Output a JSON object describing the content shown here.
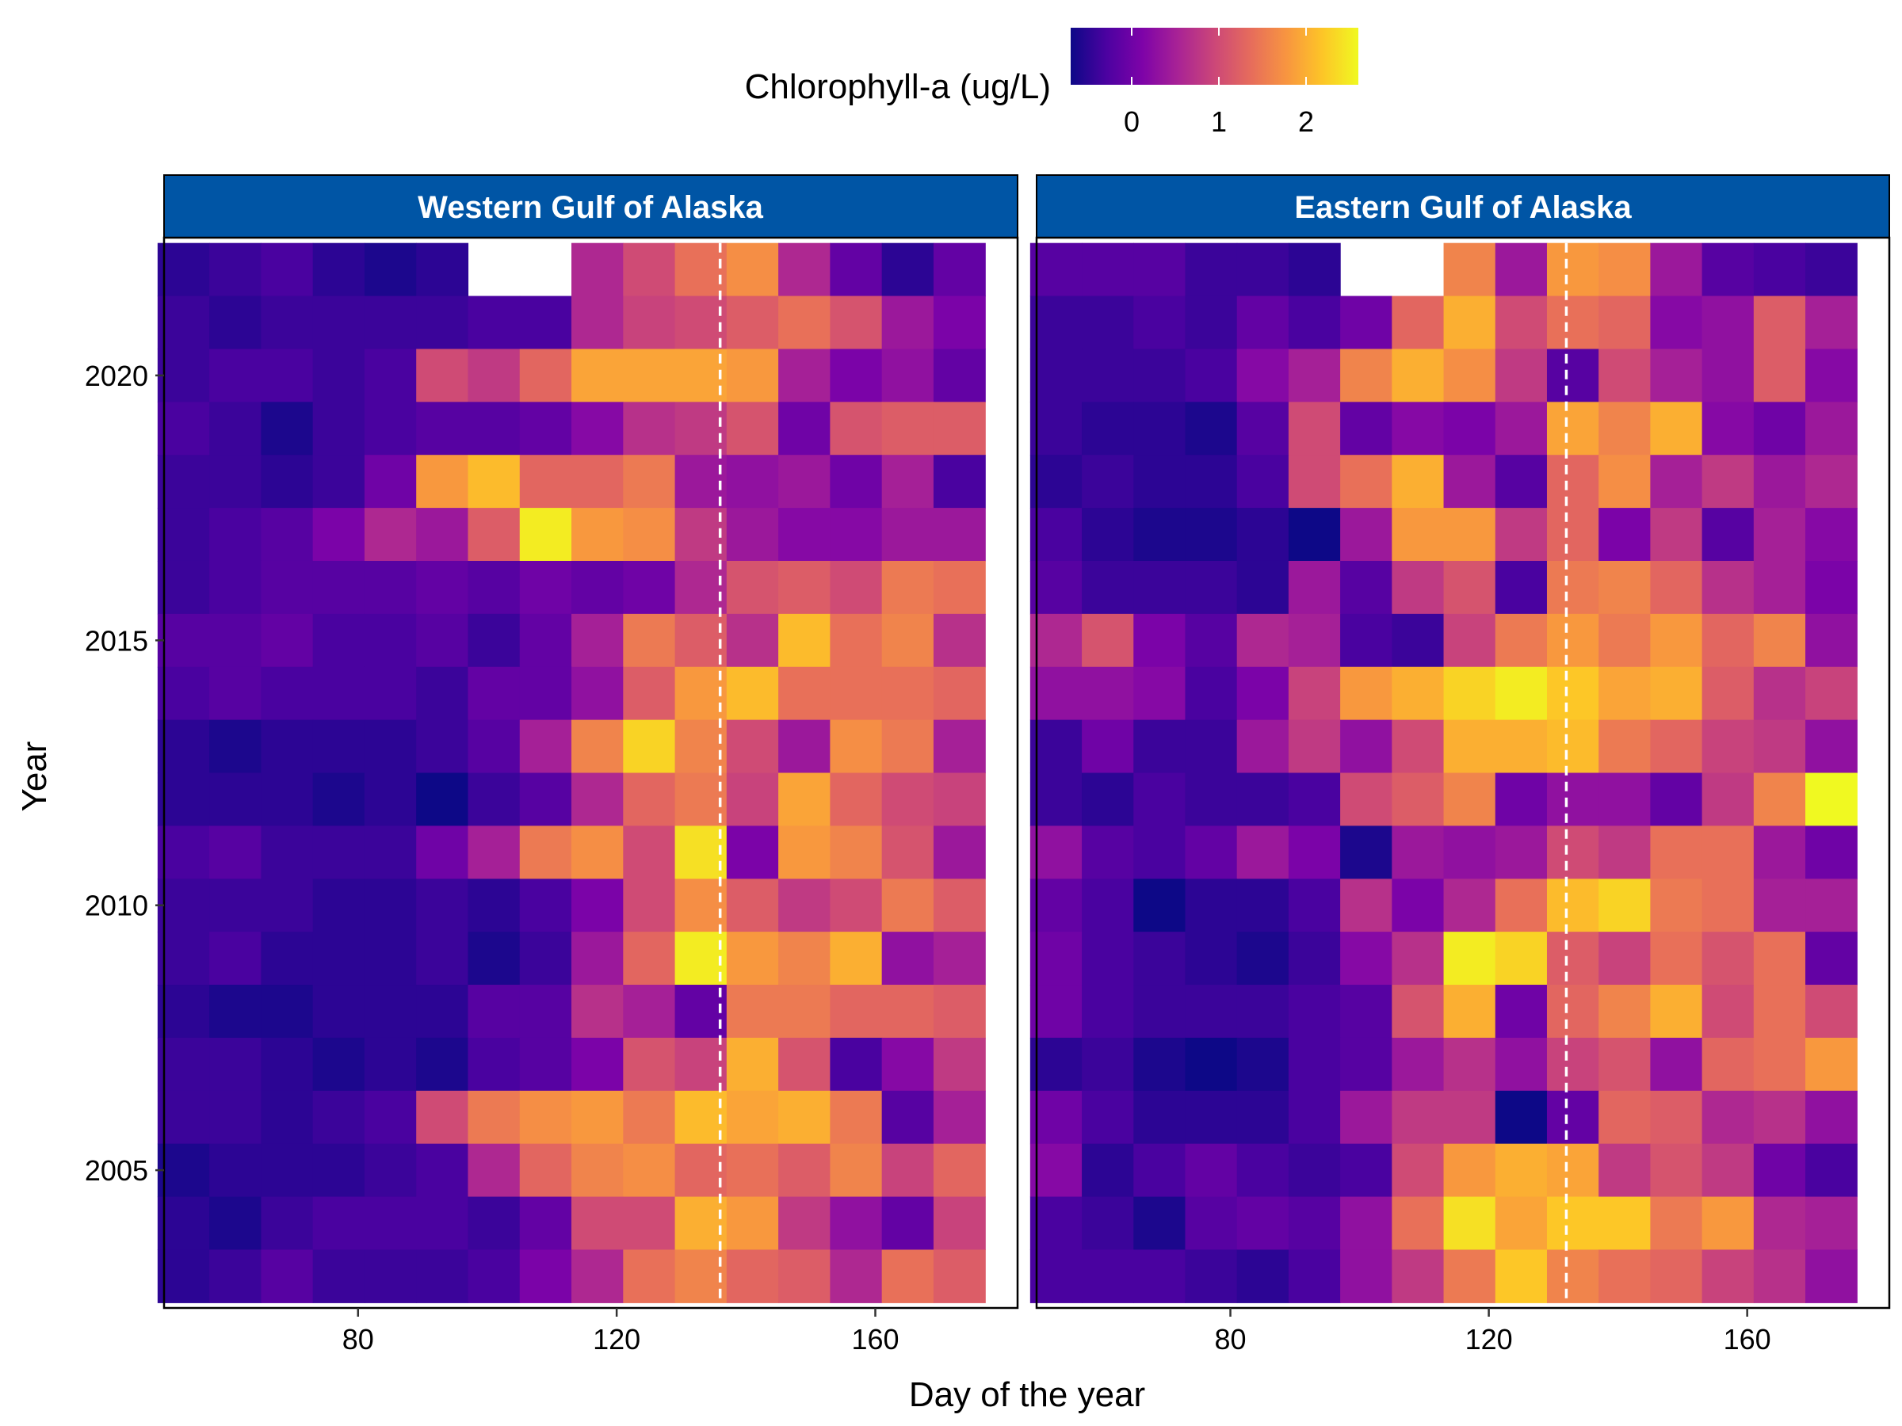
{
  "chart_data": {
    "type": "heatmap",
    "legend": {
      "title": "Chlorophyll-a (ug/L)",
      "position": "top",
      "colormap": "plasma",
      "range": [
        -0.7,
        2.6
      ],
      "ticks": [
        0,
        1,
        2
      ]
    },
    "xlabel": "Day of the year",
    "ylabel": "Year",
    "x_ticks": [
      80,
      120,
      160
    ],
    "y_ticks": [
      2005,
      2010,
      2015,
      2020
    ],
    "xlim": [
      50,
      182
    ],
    "ylim": [
      2002.4,
      2022.6
    ],
    "bin_days": 8,
    "bin_start_days": [
      49,
      57,
      65,
      73,
      81,
      89,
      97,
      105,
      113,
      121,
      129,
      137,
      145,
      153,
      161,
      169
    ],
    "years": [
      2022,
      2021,
      2020,
      2019,
      2018,
      2017,
      2016,
      2015,
      2014,
      2013,
      2012,
      2011,
      2010,
      2009,
      2008,
      2007,
      2006,
      2005,
      2004,
      2003
    ],
    "panels": [
      {
        "name": "Western Gulf of Alaska",
        "reference_day": 136,
        "rows": [
          [
            -0.5,
            -0.4,
            -0.3,
            -0.5,
            -0.6,
            -0.5,
            null,
            null,
            0.6,
            1.0,
            1.4,
            1.7,
            0.6,
            -0.1,
            -0.5,
            -0.1
          ],
          [
            -0.4,
            -0.5,
            -0.4,
            -0.4,
            -0.4,
            -0.4,
            -0.3,
            -0.3,
            0.6,
            0.9,
            1.0,
            1.2,
            1.4,
            1.1,
            0.4,
            0.1
          ],
          [
            -0.4,
            -0.3,
            -0.3,
            -0.4,
            -0.3,
            1.0,
            0.8,
            1.3,
            1.9,
            1.9,
            1.9,
            1.8,
            0.5,
            0.1,
            0.3,
            -0.1
          ],
          [
            -0.3,
            -0.4,
            -0.6,
            -0.4,
            -0.3,
            -0.2,
            -0.2,
            -0.1,
            0.2,
            0.7,
            0.8,
            1.1,
            0.0,
            1.1,
            1.2,
            1.2
          ],
          [
            -0.4,
            -0.4,
            -0.5,
            -0.4,
            0.0,
            1.8,
            2.1,
            1.3,
            1.3,
            1.5,
            0.4,
            0.3,
            0.4,
            0.0,
            0.5,
            -0.3
          ],
          [
            -0.4,
            -0.3,
            -0.2,
            0.1,
            0.6,
            0.4,
            1.2,
            2.5,
            1.8,
            1.7,
            0.8,
            0.4,
            0.2,
            0.2,
            0.4,
            0.4
          ],
          [
            -0.4,
            -0.3,
            -0.2,
            -0.2,
            -0.2,
            -0.1,
            -0.2,
            0.0,
            -0.1,
            0.0,
            0.6,
            1.1,
            1.2,
            1.0,
            1.5,
            1.4
          ],
          [
            -0.2,
            -0.2,
            -0.1,
            -0.3,
            -0.3,
            -0.2,
            -0.4,
            -0.1,
            0.5,
            1.5,
            1.2,
            0.7,
            2.1,
            1.4,
            1.6,
            0.7
          ],
          [
            -0.3,
            -0.2,
            -0.3,
            -0.3,
            -0.3,
            -0.4,
            -0.1,
            -0.1,
            0.3,
            1.2,
            1.8,
            2.1,
            1.4,
            1.4,
            1.4,
            1.3
          ],
          [
            -0.5,
            -0.6,
            -0.5,
            -0.5,
            -0.5,
            -0.4,
            -0.2,
            0.5,
            1.6,
            2.3,
            1.6,
            1.0,
            0.4,
            1.7,
            1.5,
            0.5
          ],
          [
            -0.5,
            -0.5,
            -0.5,
            -0.6,
            -0.5,
            -0.7,
            -0.4,
            -0.2,
            0.6,
            1.3,
            1.5,
            0.9,
            1.9,
            1.3,
            1.0,
            0.9
          ],
          [
            -0.3,
            -0.2,
            -0.4,
            -0.4,
            -0.4,
            0.0,
            0.5,
            1.5,
            1.7,
            1.0,
            2.4,
            0.1,
            1.8,
            1.6,
            1.1,
            0.4
          ],
          [
            -0.4,
            -0.4,
            -0.4,
            -0.5,
            -0.5,
            -0.4,
            -0.5,
            -0.3,
            0.1,
            1.0,
            1.7,
            1.2,
            0.8,
            1.0,
            1.5,
            1.2
          ],
          [
            -0.4,
            -0.3,
            -0.5,
            -0.5,
            -0.5,
            -0.4,
            -0.6,
            -0.4,
            0.4,
            1.3,
            2.5,
            1.8,
            1.6,
            2.0,
            0.3,
            0.5
          ],
          [
            -0.5,
            -0.6,
            -0.6,
            -0.5,
            -0.5,
            -0.5,
            -0.2,
            -0.2,
            0.7,
            0.5,
            -0.1,
            1.5,
            1.5,
            1.3,
            1.3,
            1.2
          ],
          [
            -0.4,
            -0.4,
            -0.5,
            -0.6,
            -0.5,
            -0.6,
            -0.3,
            -0.2,
            0.1,
            1.1,
            0.9,
            2.0,
            1.1,
            -0.3,
            0.2,
            0.8
          ],
          [
            -0.4,
            -0.4,
            -0.5,
            -0.4,
            -0.3,
            1.0,
            1.5,
            1.7,
            1.8,
            1.5,
            2.1,
            1.9,
            2.0,
            1.5,
            -0.2,
            0.5
          ],
          [
            -0.6,
            -0.5,
            -0.5,
            -0.5,
            -0.4,
            -0.3,
            0.6,
            1.3,
            1.6,
            1.7,
            1.3,
            1.4,
            1.2,
            1.6,
            0.9,
            1.3
          ],
          [
            -0.5,
            -0.6,
            -0.4,
            -0.3,
            -0.3,
            -0.3,
            -0.4,
            -0.1,
            1.0,
            1.0,
            2.0,
            1.8,
            0.8,
            0.3,
            -0.1,
            0.9
          ],
          [
            -0.5,
            -0.4,
            -0.2,
            -0.4,
            -0.4,
            -0.4,
            -0.3,
            0.1,
            0.6,
            1.4,
            1.6,
            1.3,
            1.2,
            0.6,
            1.4,
            1.2
          ]
        ]
      },
      {
        "name": "Eastern Gulf of Alaska",
        "reference_day": 132,
        "rows": [
          [
            -0.2,
            -0.2,
            -0.2,
            -0.4,
            -0.4,
            -0.5,
            null,
            null,
            1.6,
            0.4,
            1.8,
            1.7,
            0.4,
            -0.2,
            -0.3,
            -0.4
          ],
          [
            -0.4,
            -0.4,
            -0.3,
            -0.4,
            -0.1,
            -0.3,
            0.0,
            1.3,
            2.0,
            1.0,
            1.4,
            1.3,
            0.2,
            0.3,
            1.2,
            0.5
          ],
          [
            -0.4,
            -0.4,
            -0.4,
            -0.3,
            0.2,
            0.5,
            1.6,
            2.0,
            1.7,
            0.8,
            -0.2,
            1.0,
            0.5,
            0.3,
            1.2,
            0.2
          ],
          [
            -0.4,
            -0.5,
            -0.5,
            -0.6,
            -0.2,
            1.0,
            -0.1,
            0.2,
            0.1,
            0.4,
            1.9,
            1.6,
            2.0,
            0.2,
            0.0,
            0.4
          ],
          [
            -0.5,
            -0.4,
            -0.5,
            -0.5,
            -0.3,
            1.0,
            1.4,
            2.0,
            0.4,
            -0.2,
            1.3,
            1.7,
            0.5,
            0.8,
            0.4,
            0.6
          ],
          [
            -0.3,
            -0.5,
            -0.6,
            -0.6,
            -0.5,
            -0.9,
            0.4,
            1.8,
            1.8,
            0.8,
            1.3,
            0.1,
            0.8,
            -0.2,
            0.5,
            0.2
          ],
          [
            -0.2,
            -0.4,
            -0.4,
            -0.4,
            -0.5,
            0.4,
            -0.2,
            0.8,
            1.1,
            -0.3,
            1.5,
            1.6,
            1.3,
            0.7,
            0.5,
            0.1
          ],
          [
            0.6,
            1.1,
            0.1,
            -0.2,
            0.6,
            0.5,
            -0.3,
            -0.4,
            0.9,
            1.5,
            1.8,
            1.5,
            1.8,
            1.3,
            1.6,
            0.3
          ],
          [
            0.3,
            0.3,
            0.2,
            -0.3,
            0.1,
            0.9,
            1.8,
            2.0,
            2.3,
            2.5,
            2.2,
            1.9,
            2.0,
            1.2,
            0.7,
            0.9
          ],
          [
            -0.4,
            0.0,
            -0.4,
            -0.4,
            0.4,
            0.8,
            0.3,
            1.0,
            2.0,
            2.0,
            2.1,
            1.5,
            1.3,
            0.9,
            0.8,
            0.3
          ],
          [
            -0.4,
            -0.5,
            -0.3,
            -0.4,
            -0.4,
            -0.3,
            1.0,
            1.2,
            1.6,
            0.0,
            0.3,
            0.3,
            -0.1,
            0.8,
            1.6,
            2.6
          ],
          [
            0.3,
            -0.2,
            -0.3,
            -0.1,
            0.4,
            0.1,
            -0.6,
            0.4,
            0.3,
            0.4,
            1.0,
            0.8,
            1.4,
            1.4,
            0.4,
            0.0
          ],
          [
            -0.1,
            -0.3,
            -0.8,
            -0.5,
            -0.5,
            -0.3,
            0.7,
            0.1,
            0.6,
            1.4,
            2.1,
            2.3,
            1.5,
            1.4,
            0.5,
            0.5
          ],
          [
            0.0,
            -0.3,
            -0.4,
            -0.5,
            -0.6,
            -0.4,
            0.2,
            0.7,
            2.5,
            2.3,
            1.2,
            0.9,
            1.4,
            1.1,
            1.4,
            -0.1
          ],
          [
            0.0,
            -0.3,
            -0.4,
            -0.4,
            -0.4,
            -0.3,
            -0.2,
            1.1,
            2.0,
            0.0,
            1.3,
            1.6,
            2.0,
            1.0,
            1.4,
            1.0
          ],
          [
            -0.5,
            -0.4,
            -0.6,
            -0.7,
            -0.6,
            -0.3,
            -0.2,
            0.4,
            0.7,
            0.3,
            0.9,
            1.1,
            0.3,
            1.3,
            1.4,
            1.8
          ],
          [
            0.0,
            -0.3,
            -0.5,
            -0.5,
            -0.5,
            -0.3,
            0.4,
            0.8,
            0.8,
            -0.7,
            -0.1,
            1.3,
            1.2,
            0.6,
            0.7,
            0.3
          ],
          [
            0.2,
            -0.5,
            -0.3,
            -0.1,
            -0.3,
            -0.4,
            -0.3,
            1.0,
            1.8,
            2.0,
            1.9,
            0.8,
            1.1,
            0.8,
            0.0,
            -0.3
          ],
          [
            -0.3,
            -0.4,
            -0.6,
            -0.2,
            -0.1,
            -0.2,
            0.3,
            1.4,
            2.4,
            1.9,
            2.2,
            2.2,
            1.5,
            1.8,
            0.6,
            0.5
          ],
          [
            -0.3,
            -0.3,
            -0.3,
            -0.4,
            -0.5,
            -0.3,
            0.3,
            0.8,
            1.5,
            2.2,
            1.6,
            1.4,
            1.3,
            0.9,
            0.7,
            0.3
          ]
        ]
      }
    ]
  }
}
